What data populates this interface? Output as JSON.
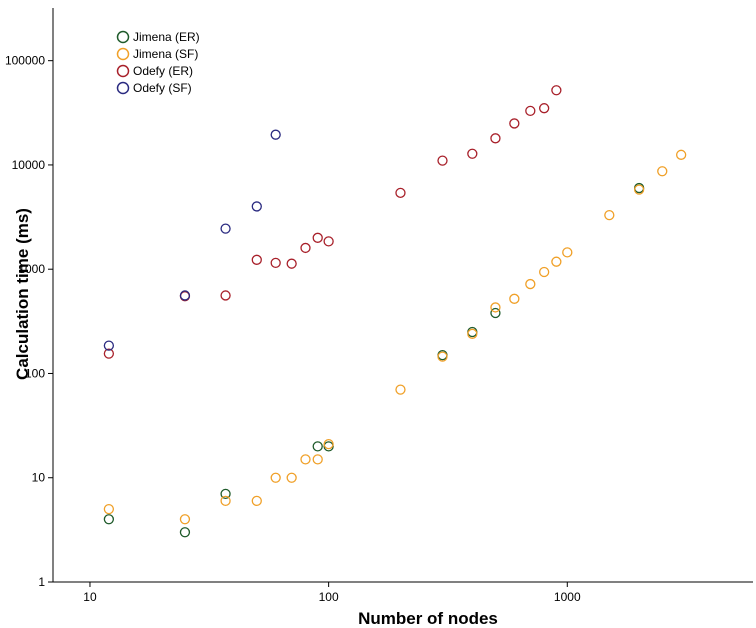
{
  "chart_data": {
    "type": "scatter",
    "xlabel": "Number of nodes",
    "ylabel": "Calculation time (ms)",
    "x_scale": "log",
    "y_scale": "log",
    "xlim": [
      7,
      6000
    ],
    "ylim": [
      1,
      320000
    ],
    "x_ticks": [
      10,
      100,
      1000
    ],
    "y_ticks": [
      1,
      10,
      100,
      1000,
      10000,
      100000
    ],
    "x_tick_labels": [
      "10",
      "100",
      "1000"
    ],
    "y_tick_labels": [
      "1",
      "10",
      "100",
      "1000",
      "10000",
      "100000"
    ],
    "grid": false,
    "legend_position": "top-left",
    "series": [
      {
        "name": "Jimena (ER)",
        "color": "#1e5a2a",
        "points": [
          [
            12,
            4
          ],
          [
            25,
            3
          ],
          [
            37,
            7
          ],
          [
            90,
            20
          ],
          [
            100,
            20
          ],
          [
            300,
            150
          ],
          [
            400,
            250
          ],
          [
            500,
            380
          ],
          [
            2000,
            6000
          ]
        ]
      },
      {
        "name": "Jimena (SF)",
        "color": "#f0a028",
        "points": [
          [
            12,
            5
          ],
          [
            25,
            4
          ],
          [
            37,
            6
          ],
          [
            50,
            6
          ],
          [
            60,
            10
          ],
          [
            70,
            10
          ],
          [
            80,
            15
          ],
          [
            90,
            15
          ],
          [
            100,
            21
          ],
          [
            200,
            70
          ],
          [
            300,
            145
          ],
          [
            400,
            240
          ],
          [
            500,
            430
          ],
          [
            600,
            520
          ],
          [
            700,
            720
          ],
          [
            800,
            940
          ],
          [
            900,
            1180
          ],
          [
            1000,
            1450
          ],
          [
            1500,
            3300
          ],
          [
            2000,
            5800
          ],
          [
            2500,
            8700
          ],
          [
            3000,
            12500
          ]
        ]
      },
      {
        "name": "Odefy (ER)",
        "color": "#a8202a",
        "points": [
          [
            12,
            155
          ],
          [
            25,
            550
          ],
          [
            37,
            560
          ],
          [
            50,
            1230
          ],
          [
            60,
            1150
          ],
          [
            70,
            1130
          ],
          [
            80,
            1600
          ],
          [
            90,
            2000
          ],
          [
            100,
            1850
          ],
          [
            200,
            5400
          ],
          [
            300,
            11000
          ],
          [
            400,
            12800
          ],
          [
            500,
            18000
          ],
          [
            600,
            25000
          ],
          [
            700,
            33000
          ],
          [
            800,
            35000
          ],
          [
            900,
            52000
          ]
        ]
      },
      {
        "name": "Odefy (SF)",
        "color": "#2a2a80",
        "points": [
          [
            12,
            185
          ],
          [
            25,
            560
          ],
          [
            37,
            2450
          ],
          [
            50,
            4000
          ],
          [
            60,
            19500
          ]
        ]
      }
    ]
  }
}
